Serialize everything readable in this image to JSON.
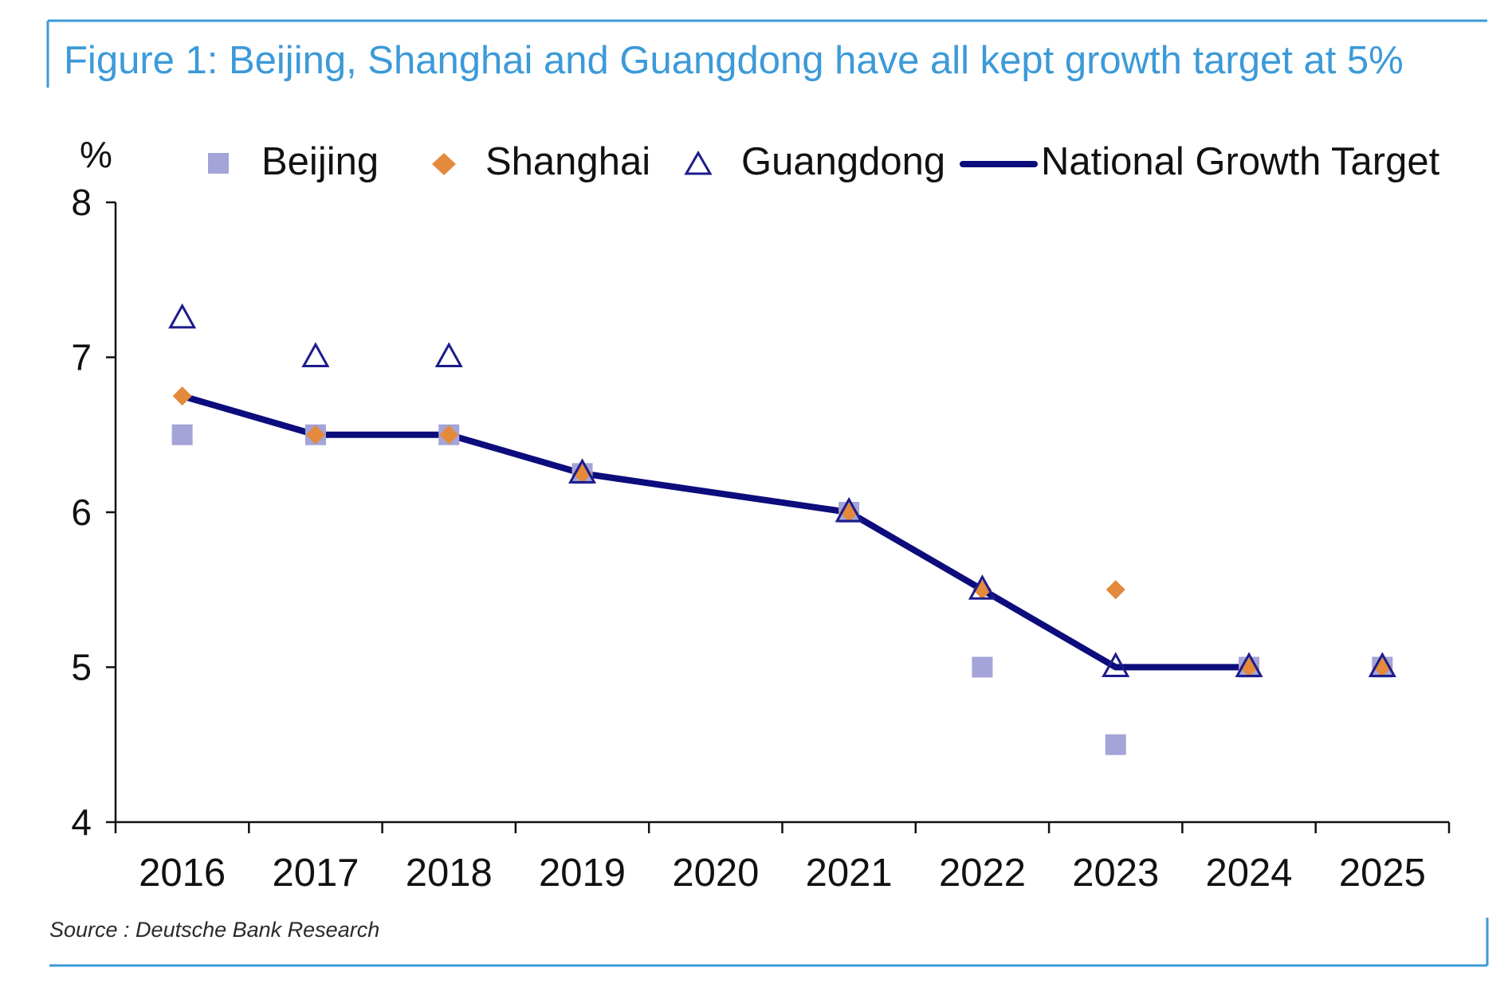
{
  "figure": {
    "title": "Figure 1: Beijing, Shanghai and Guangdong have all kept growth target at 5%",
    "source": "Source : Deutsche Bank Research",
    "accent_color": "#3c9ad8"
  },
  "chart_data": {
    "type": "line",
    "title": "Figure 1: Beijing, Shanghai and Guangdong have all kept growth target at 5%",
    "xlabel": "",
    "ylabel": "%",
    "categories": [
      "2016",
      "2017",
      "2018",
      "2019",
      "2020",
      "2021",
      "2022",
      "2023",
      "2024",
      "2025"
    ],
    "ylim": [
      4,
      8
    ],
    "yticks": [
      "4",
      "5",
      "6",
      "7",
      "8"
    ],
    "grid": false,
    "legend_position": "top",
    "series": [
      {
        "name": "Beijing",
        "kind": "scatter",
        "marker": "square",
        "color": "#a4a4d8",
        "values": [
          6.5,
          6.5,
          6.5,
          6.25,
          null,
          6.0,
          5.0,
          4.5,
          5.0,
          5.0
        ]
      },
      {
        "name": "Shanghai",
        "kind": "scatter",
        "marker": "diamond",
        "color": "#e38a3c",
        "values": [
          6.75,
          6.5,
          6.5,
          6.25,
          null,
          6.0,
          5.5,
          5.5,
          5.0,
          5.0
        ]
      },
      {
        "name": "Guangdong",
        "kind": "scatter",
        "marker": "triangle-open",
        "color": "#1c1c8c",
        "values": [
          7.25,
          7.0,
          7.0,
          6.25,
          null,
          6.0,
          5.5,
          5.0,
          5.0,
          5.0
        ]
      },
      {
        "name": "National Growth Target",
        "kind": "line",
        "color": "#0c0c7c",
        "values": [
          6.75,
          6.5,
          6.5,
          6.25,
          null,
          6.0,
          5.5,
          5.0,
          5.0,
          null
        ]
      }
    ]
  }
}
